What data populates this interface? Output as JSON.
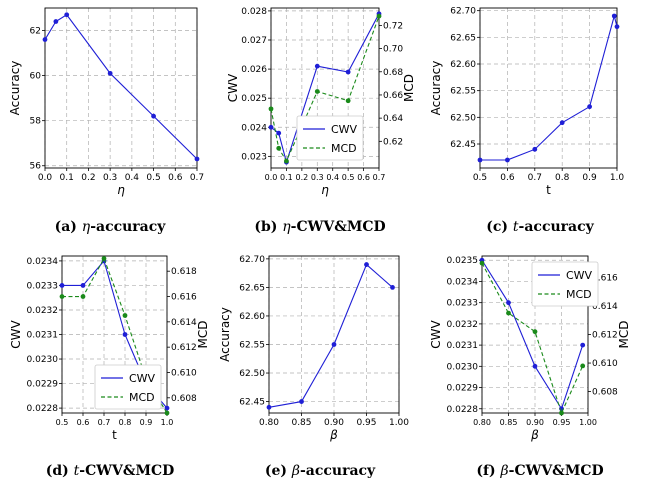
{
  "captions": [
    {
      "label": "(a)",
      "symbol": "η",
      "suffix": "-accuracy"
    },
    {
      "label": "(b)",
      "symbol": "η",
      "suffix": "-CWV&MCD"
    },
    {
      "label": "(c)",
      "symbol": "t",
      "suffix": "-accuracy"
    },
    {
      "label": "(d)",
      "symbol": "t",
      "suffix": "-CWV&MCD"
    },
    {
      "label": "(e)",
      "symbol": "β",
      "suffix": "-accuracy"
    },
    {
      "label": "(f)",
      "symbol": "β",
      "suffix": "-CWV&MCD"
    }
  ],
  "colors": {
    "cwv": "#1f1fd6",
    "mcd": "#1a8a1a",
    "grid": "#b0b0b0"
  },
  "chart_data": [
    {
      "type": "line",
      "xlabel": "η",
      "ylabel": "Accuracy",
      "xlim": [
        0.0,
        0.7
      ],
      "ylim": [
        55.9,
        63.0
      ],
      "xticks": [
        0.0,
        0.1,
        0.2,
        0.3,
        0.4,
        0.5,
        0.6,
        0.7
      ],
      "xtick_labels": [
        "0.0",
        "0.1",
        "0.2",
        "0.3",
        "0.4",
        "0.5",
        "0.6",
        "0.7"
      ],
      "yticks": [
        56,
        58,
        60,
        62
      ],
      "ytick_labels": [
        "56",
        "58",
        "60",
        "62"
      ],
      "grid": true,
      "series": [
        {
          "axis": "left",
          "color": "#1f1fd6",
          "style": "solid",
          "x": [
            0.0,
            0.05,
            0.1,
            0.3,
            0.5,
            0.7
          ],
          "y": [
            61.6,
            62.4,
            62.7,
            60.1,
            58.2,
            56.3
          ]
        }
      ]
    },
    {
      "type": "line",
      "xlabel": "η",
      "ylabel": "CWV",
      "ylabel_right": "MCD",
      "xlim": [
        0.0,
        0.7
      ],
      "ylim": [
        0.0226,
        0.0281
      ],
      "ylim_right": [
        0.597,
        0.735
      ],
      "xticks": [
        0.0,
        0.1,
        0.2,
        0.3,
        0.4,
        0.5,
        0.6,
        0.7
      ],
      "xtick_labels": [
        "0.0",
        "0.1",
        "0.2",
        "0.3",
        "0.4",
        "0.5",
        "0.6",
        "0.7"
      ],
      "yticks": [
        0.023,
        0.024,
        0.025,
        0.026,
        0.027,
        0.028
      ],
      "ytick_labels": [
        "0.023",
        "0.024",
        "0.025",
        "0.026",
        "0.027",
        "0.028"
      ],
      "yticks_right": [
        0.62,
        0.64,
        0.66,
        0.68,
        0.7,
        0.72
      ],
      "ytick_labels_right": [
        "0.62",
        "0.64",
        "0.66",
        "0.68",
        "0.70",
        "0.72"
      ],
      "grid": true,
      "legend": {
        "position": "center-right",
        "entries": [
          "CWV",
          "MCD"
        ]
      },
      "series": [
        {
          "name": "CWV",
          "axis": "left",
          "color": "#1f1fd6",
          "style": "solid",
          "x": [
            0.0,
            0.05,
            0.1,
            0.3,
            0.5,
            0.7
          ],
          "y": [
            0.024,
            0.0238,
            0.0228,
            0.0261,
            0.0259,
            0.0279
          ]
        },
        {
          "name": "MCD",
          "axis": "right",
          "color": "#1a8a1a",
          "style": "dashed",
          "x": [
            0.0,
            0.05,
            0.1,
            0.3,
            0.5,
            0.7
          ],
          "y": [
            0.648,
            0.614,
            0.603,
            0.663,
            0.655,
            0.728
          ]
        }
      ]
    },
    {
      "type": "line",
      "xlabel": "t",
      "ylabel": "Accuracy",
      "xlim": [
        0.5,
        1.0
      ],
      "ylim": [
        62.405,
        62.705
      ],
      "xticks": [
        0.5,
        0.6,
        0.7,
        0.8,
        0.9,
        1.0
      ],
      "xtick_labels": [
        "0.5",
        "0.6",
        "0.7",
        "0.8",
        "0.9",
        "1.0"
      ],
      "yticks": [
        62.45,
        62.5,
        62.55,
        62.6,
        62.65,
        62.7
      ],
      "ytick_labels": [
        "62.45",
        "62.50",
        "62.55",
        "62.60",
        "62.65",
        "62.70"
      ],
      "grid": true,
      "series": [
        {
          "axis": "left",
          "color": "#1f1fd6",
          "style": "solid",
          "x": [
            0.5,
            0.6,
            0.7,
            0.8,
            0.9,
            0.99,
            1.0
          ],
          "y": [
            62.42,
            62.42,
            62.44,
            62.49,
            62.52,
            62.69,
            62.67
          ]
        }
      ]
    },
    {
      "type": "line",
      "xlabel": "t",
      "ylabel": "CWV",
      "ylabel_right": "MCD",
      "xlim": [
        0.5,
        1.0
      ],
      "ylim": [
        0.02278,
        0.02342
      ],
      "ylim_right": [
        0.6068,
        0.6192
      ],
      "xticks": [
        0.5,
        0.6,
        0.7,
        0.8,
        0.9,
        1.0
      ],
      "xtick_labels": [
        "0.5",
        "0.6",
        "0.7",
        "0.8",
        "0.9",
        "1.0"
      ],
      "yticks": [
        0.0228,
        0.0229,
        0.023,
        0.0231,
        0.0232,
        0.0233,
        0.0234
      ],
      "ytick_labels": [
        "0.0228",
        "0.0229",
        "0.0230",
        "0.0231",
        "0.0232",
        "0.0233",
        "0.0234"
      ],
      "yticks_right": [
        0.608,
        0.61,
        0.612,
        0.614,
        0.616,
        0.618
      ],
      "ytick_labels_right": [
        "0.608",
        "0.610",
        "0.612",
        "0.614",
        "0.616",
        "0.618"
      ],
      "grid": true,
      "legend": {
        "position": "lower-left",
        "entries": [
          "CWV",
          "MCD"
        ]
      },
      "series": [
        {
          "name": "CWV",
          "axis": "left",
          "color": "#1f1fd6",
          "style": "solid",
          "x": [
            0.5,
            0.6,
            0.7,
            0.8,
            0.9,
            1.0
          ],
          "y": [
            0.0233,
            0.0233,
            0.0234,
            0.0231,
            0.0229,
            0.0228
          ]
        },
        {
          "name": "MCD",
          "axis": "right",
          "color": "#1a8a1a",
          "style": "dashed",
          "x": [
            0.5,
            0.6,
            0.7,
            0.8,
            0.9,
            1.0
          ],
          "y": [
            0.616,
            0.616,
            0.619,
            0.6145,
            0.6095,
            0.6068
          ]
        }
      ]
    },
    {
      "type": "line",
      "xlabel": "β",
      "ylabel": "Accuracy",
      "xlim": [
        0.8,
        1.0
      ],
      "ylim": [
        62.43,
        62.705
      ],
      "xticks": [
        0.8,
        0.85,
        0.9,
        0.95,
        1.0
      ],
      "xtick_labels": [
        "0.80",
        "0.85",
        "0.90",
        "0.95",
        "1.00"
      ],
      "yticks": [
        62.45,
        62.5,
        62.55,
        62.6,
        62.65,
        62.7
      ],
      "ytick_labels": [
        "62.45",
        "62.50",
        "62.55",
        "62.60",
        "62.65",
        "62.70"
      ],
      "grid": true,
      "series": [
        {
          "axis": "left",
          "color": "#1f1fd6",
          "style": "solid",
          "x": [
            0.8,
            0.85,
            0.9,
            0.95,
            0.99
          ],
          "y": [
            62.44,
            62.45,
            62.55,
            62.69,
            62.65
          ]
        }
      ]
    },
    {
      "type": "line",
      "xlabel": "β",
      "ylabel": "CWV",
      "ylabel_right": "MCD",
      "xlim": [
        0.8,
        1.0
      ],
      "ylim": [
        0.02278,
        0.02352
      ],
      "ylim_right": [
        0.6065,
        0.6175
      ],
      "xticks": [
        0.8,
        0.85,
        0.9,
        0.95,
        1.0
      ],
      "xtick_labels": [
        "0.80",
        "0.85",
        "0.90",
        "0.95",
        "1.00"
      ],
      "yticks": [
        0.0228,
        0.0229,
        0.023,
        0.0231,
        0.0232,
        0.0233,
        0.0234,
        0.0235
      ],
      "ytick_labels": [
        "0.0228",
        "0.0229",
        "0.0230",
        "0.0231",
        "0.0232",
        "0.0233",
        "0.0234",
        "0.0235"
      ],
      "yticks_right": [
        0.608,
        0.61,
        0.612,
        0.614,
        0.616
      ],
      "ytick_labels_right": [
        "0.608",
        "0.610",
        "0.612",
        "0.614",
        "0.616"
      ],
      "grid": true,
      "legend": {
        "position": "top-right",
        "entries": [
          "CWV",
          "MCD"
        ]
      },
      "series": [
        {
          "name": "CWV",
          "axis": "left",
          "color": "#1f1fd6",
          "style": "solid",
          "x": [
            0.8,
            0.85,
            0.9,
            0.95,
            0.99
          ],
          "y": [
            0.0235,
            0.0233,
            0.023,
            0.0228,
            0.0231
          ]
        },
        {
          "name": "MCD",
          "axis": "right",
          "color": "#1a8a1a",
          "style": "dashed",
          "x": [
            0.8,
            0.85,
            0.9,
            0.95,
            0.99
          ],
          "y": [
            0.617,
            0.6135,
            0.6122,
            0.6065,
            0.6098
          ]
        }
      ]
    }
  ]
}
